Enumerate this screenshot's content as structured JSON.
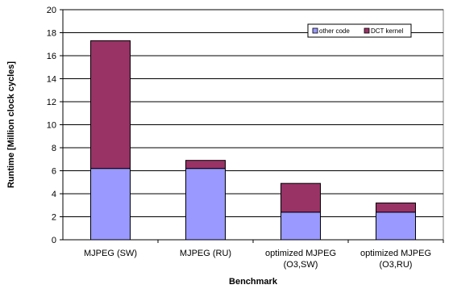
{
  "chart_data": {
    "type": "bar",
    "stacked": true,
    "categories": [
      [
        "MJPEG (SW)"
      ],
      [
        "MJPEG (RU)"
      ],
      [
        "optimized MJPEG",
        "(O3,SW)"
      ],
      [
        "optimized MJPEG",
        "(O3,RU)"
      ]
    ],
    "series": [
      {
        "name": "other code",
        "color": "#9999ff",
        "values": [
          6.2,
          6.2,
          2.4,
          2.4
        ]
      },
      {
        "name": "DCT kernel",
        "color": "#993366",
        "values": [
          11.1,
          0.7,
          2.5,
          0.8
        ]
      }
    ],
    "xlabel": "Benchmark",
    "ylabel": "Runtime [Million clock cycles]",
    "ylim": [
      0,
      20
    ],
    "yticks": [
      0,
      2,
      4,
      6,
      8,
      10,
      12,
      14,
      16,
      18,
      20
    ],
    "grid": true,
    "legend": "top-right"
  }
}
